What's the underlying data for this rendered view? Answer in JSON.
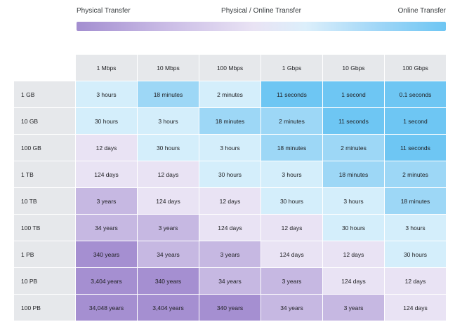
{
  "legend": {
    "left_label": "Physical Transfer",
    "middle_label": "Physical / Online Transfer",
    "right_label": "Online Transfer"
  },
  "chart_data": {
    "type": "table",
    "columns": [
      "1 Mbps",
      "10 Mbps",
      "100 Mbps",
      "1 Gbps",
      "10 Gbps",
      "100 Gbps"
    ],
    "rows": [
      {
        "label": "1 GB",
        "cells": [
          "3 hours",
          "18 minutes",
          "2 minutes",
          "11 seconds",
          "1 second",
          "0.1 seconds"
        ]
      },
      {
        "label": "10 GB",
        "cells": [
          "30 hours",
          "3 hours",
          "18 minutes",
          "2 minutes",
          "11 seconds",
          "1 second"
        ]
      },
      {
        "label": "100 GB",
        "cells": [
          "12 days",
          "30 hours",
          "3 hours",
          "18 minutes",
          "2 minutes",
          "11 seconds"
        ]
      },
      {
        "label": "1 TB",
        "cells": [
          "124 days",
          "12 days",
          "30 hours",
          "3 hours",
          "18 minutes",
          "2 minutes"
        ]
      },
      {
        "label": "10 TB",
        "cells": [
          "3 years",
          "124 days",
          "12 days",
          "30 hours",
          "3 hours",
          "18 minutes"
        ]
      },
      {
        "label": "100 TB",
        "cells": [
          "34 years",
          "3 years",
          "124 days",
          "12 days",
          "30 hours",
          "3 hours"
        ]
      },
      {
        "label": "1 PB",
        "cells": [
          "340 years",
          "34 years",
          "3 years",
          "124 days",
          "12 days",
          "30 hours"
        ]
      },
      {
        "label": "10 PB",
        "cells": [
          "3,404 years",
          "340 years",
          "34 years",
          "3 years",
          "124 days",
          "12 days"
        ]
      },
      {
        "label": "100 PB",
        "cells": [
          "34,048 years",
          "3,404 years",
          "340 years",
          "34 years",
          "3 years",
          "124 days"
        ]
      }
    ],
    "color_scale": {
      "online_shades": [
        "#6ec6f3",
        "#9dd7f6",
        "#d4eefb"
      ],
      "physical_shades": [
        "#e9e3f4",
        "#c6b8e2",
        "#a58fd1"
      ]
    },
    "cell_shade": [
      [
        "o2",
        "o1",
        "o2",
        "o0",
        "o0",
        "o0"
      ],
      [
        "o2",
        "o2",
        "o1",
        "o1",
        "o0",
        "o0"
      ],
      [
        "p0",
        "o2",
        "o2",
        "o1",
        "o1",
        "o0"
      ],
      [
        "p0",
        "p0",
        "o2",
        "o2",
        "o1",
        "o1"
      ],
      [
        "p1",
        "p0",
        "p0",
        "o2",
        "o2",
        "o1"
      ],
      [
        "p1",
        "p1",
        "p0",
        "p0",
        "o2",
        "o2"
      ],
      [
        "p2",
        "p1",
        "p1",
        "p0",
        "p0",
        "o2"
      ],
      [
        "p2",
        "p2",
        "p1",
        "p1",
        "p0",
        "p0"
      ],
      [
        "p2",
        "p2",
        "p2",
        "p1",
        "p1",
        "p0"
      ]
    ]
  }
}
